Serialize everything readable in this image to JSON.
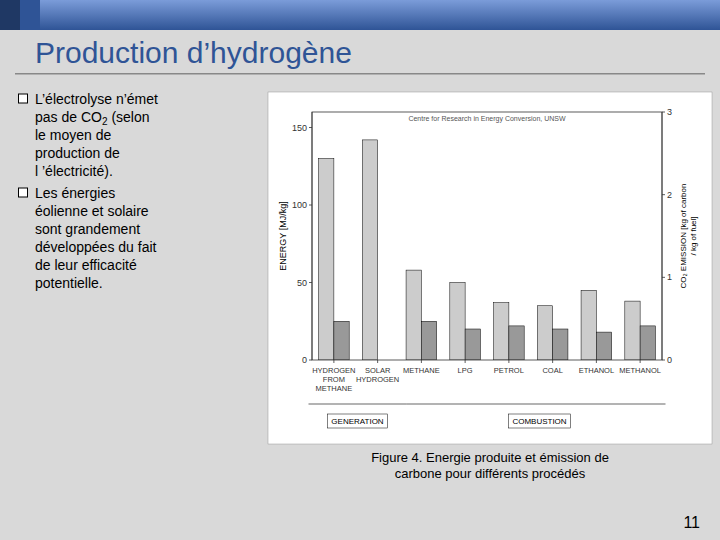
{
  "slide": {
    "title": "Production d’hydrogène",
    "title_color": "#2F5496",
    "background_color": "#D9D9D9",
    "header_gradient_colors": [
      "#2F5496",
      "#7B9CD9"
    ],
    "text_color": "#000000",
    "bullets": [
      [
        {
          "text": "L’électrolyse n’émet"
        },
        {
          "text": "pas de CO",
          "subscript": "2",
          "after": " (selon"
        },
        {
          "text": "le moyen de"
        },
        {
          "text": "production de"
        },
        {
          "text": "l ’électricité)."
        }
      ],
      [
        {
          "text": "Les énergies"
        },
        {
          "text": "éolienne et solaire"
        },
        {
          "text": "sont grandement"
        },
        {
          "text": "développées du fait"
        },
        {
          "text": "de leur efficacité"
        },
        {
          "text": "potentielle."
        }
      ]
    ],
    "caption": [
      "Figure 4. Energie produite et émission de",
      "carbone pour différents procédés"
    ],
    "page_number": "11"
  },
  "chart_data": {
    "type": "bar",
    "categories": [
      "HYDROGEN\nFROM\nMETHANE",
      "SOLAR\nHYDROGEN",
      "METHANE",
      "LPG",
      "PETROL",
      "COAL",
      "ETHANOL",
      "METHANOL"
    ],
    "series": [
      {
        "color": "#CCCCCC",
        "values": [
          130,
          142,
          58,
          50,
          37,
          35,
          45,
          38
        ]
      },
      {
        "color": "#999999",
        "values": [
          25,
          0,
          25,
          20,
          22,
          20,
          18,
          22
        ]
      }
    ],
    "ylabel": "ENERGY [MJ/kg]",
    "ylim": [
      0,
      160
    ],
    "yticks": [
      0,
      50,
      100,
      150
    ],
    "y2label": "CO₂ EMISSION [kg of carbon\n/ kg of fuel]",
    "y2lim": [
      0,
      3
    ],
    "y2ticks": [
      0,
      1,
      2,
      3
    ],
    "annotations": [
      "Centre for Research in Energy Conversion, UNSW",
      "GENERATION",
      "COMBUSTION"
    ],
    "grid": false
  }
}
